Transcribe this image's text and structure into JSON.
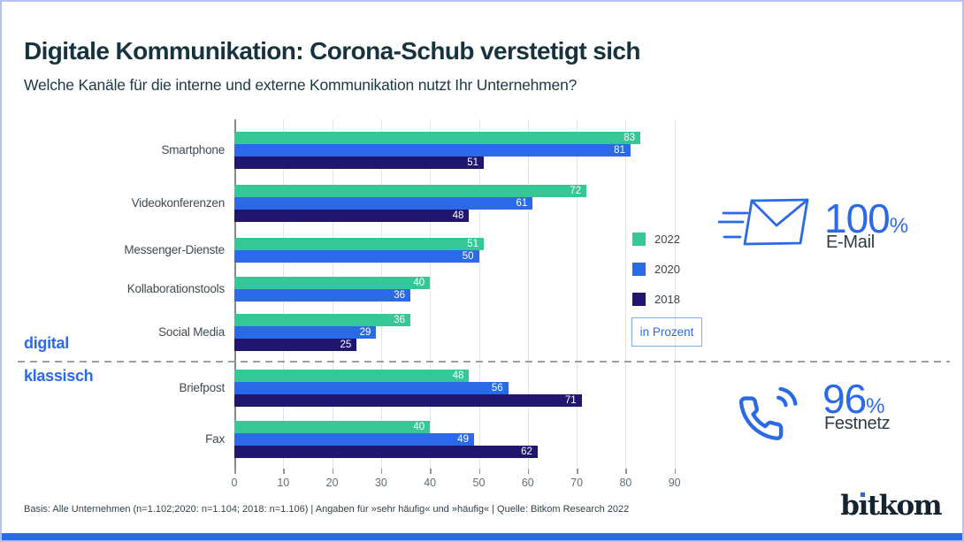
{
  "header": {
    "title": "Digitale Kommunikation: Corona-Schub verstetigt sich",
    "subtitle": "Welche Kanäle für die interne und externe Kommunikation nutzt Ihr Unternehmen?"
  },
  "chart_data": {
    "type": "bar",
    "orientation": "horizontal",
    "title": "Digitale Kommunikation: Corona-Schub verstetigt sich",
    "xlabel": "",
    "ylabel": "",
    "xlim": [
      0,
      95
    ],
    "xticks": [
      0,
      10,
      20,
      30,
      40,
      50,
      60,
      70,
      80,
      90
    ],
    "grid": true,
    "unit_note": "in Prozent",
    "series_names": [
      "2022",
      "2020",
      "2018"
    ],
    "series_colors": {
      "2022": "#35c795",
      "2020": "#2b6ae6",
      "2018": "#201670"
    },
    "rows": [
      {
        "label": "Smartphone",
        "group": "digital",
        "values": {
          "2022": 83,
          "2020": 81,
          "2018": 51
        }
      },
      {
        "label": "Videokonferenzen",
        "group": "digital",
        "values": {
          "2022": 72,
          "2020": 61,
          "2018": 48
        }
      },
      {
        "label": "Messenger-Dienste",
        "group": "digital",
        "values": {
          "2022": 51,
          "2020": 50
        }
      },
      {
        "label": "Kollaborationstools",
        "group": "digital",
        "values": {
          "2022": 40,
          "2020": 36
        }
      },
      {
        "label": "Social Media",
        "group": "digital",
        "values": {
          "2022": 36,
          "2020": 29,
          "2018": 25
        }
      },
      {
        "label": "Briefpost",
        "group": "klassisch",
        "values": {
          "2022": 48,
          "2020": 56,
          "2018": 71
        }
      },
      {
        "label": "Fax",
        "group": "klassisch",
        "values": {
          "2022": 40,
          "2020": 49,
          "2018": 62
        }
      }
    ],
    "legend": {
      "position": "right",
      "items": [
        "2022",
        "2020",
        "2018"
      ],
      "note": "in Prozent"
    },
    "group_labels": {
      "digital": "digital",
      "klassisch": "klassisch"
    }
  },
  "highlights": {
    "email": {
      "icon": "envelope-speeding",
      "value": "100",
      "unit": "%",
      "label": "E-Mail"
    },
    "phone": {
      "icon": "phone-with-waves",
      "value": "96",
      "unit": "%",
      "label": "Festnetz"
    }
  },
  "footer": {
    "source": "Basis: Alle Unternehmen (n=1.102;2020: n=1.104; 2018: n=1.106) | Angaben für »sehr häufig« und »häufig« | Quelle: Bitkom Research 2022",
    "logo_pre": "b",
    "logo_i": "ı",
    "logo_post": "tkom"
  },
  "colors": {
    "accent_blue": "#2b6ae6",
    "green_2022": "#35c795",
    "blue_2020": "#2b6ae6",
    "navy_2018": "#201670",
    "title_text": "#18333d",
    "border": "#b5c2f0",
    "gridline": "#e1e5e7"
  }
}
